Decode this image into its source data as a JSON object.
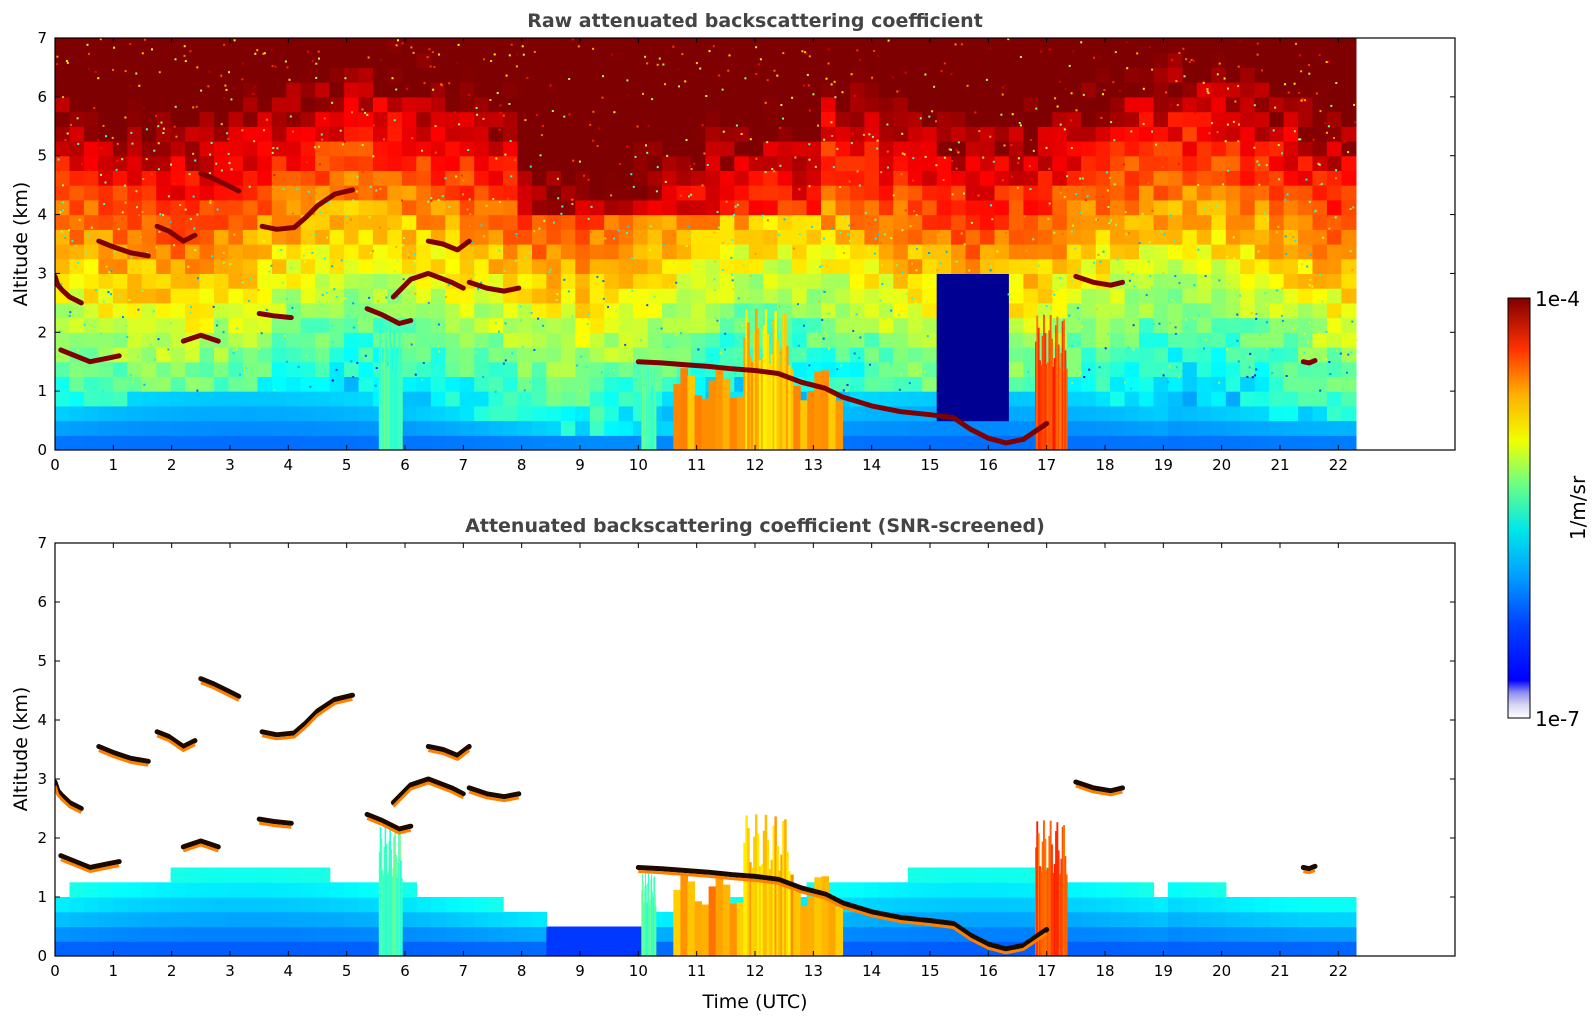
{
  "colors": {
    "jet": [
      "#00007f",
      "#0000ff",
      "#007fff",
      "#00ffff",
      "#7fff7f",
      "#ffff00",
      "#ff7f00",
      "#ff0000",
      "#7f0000"
    ],
    "cb_low_fade": "#e6e6f5",
    "layer_edge": "#1a0a00"
  },
  "colorbar": {
    "top_label": "1e-4",
    "bottom_label": "1e-7",
    "unit_label": "1/m/sr",
    "range": [
      1e-07,
      0.0001
    ],
    "scale": "log"
  },
  "chart_data": [
    {
      "type": "heatmap",
      "title": "Raw attenuated backscattering coefficient",
      "xlabel": "",
      "ylabel": "Altitude (km)",
      "xlim": [
        0,
        24
      ],
      "ylim": [
        0,
        7
      ],
      "x_ticks": [
        "0",
        "1",
        "2",
        "3",
        "4",
        "5",
        "6",
        "7",
        "8",
        "9",
        "10",
        "11",
        "12",
        "13",
        "14",
        "15",
        "16",
        "17",
        "18",
        "19",
        "20",
        "21",
        "22"
      ],
      "y_ticks": [
        "0",
        "1",
        "2",
        "3",
        "4",
        "5",
        "6",
        "7"
      ],
      "data_end_time": 22.3,
      "screened": false,
      "colorbar": "log 1e-7 to 1e-4 1/m/sr",
      "features": [
        {
          "kind": "cloud_layer",
          "t": [
            0.0,
            0.05,
            0.12,
            0.25,
            0.45
          ],
          "z": [
            2.95,
            2.8,
            2.72,
            2.6,
            2.5
          ]
        },
        {
          "kind": "cloud_layer",
          "t": [
            0.1,
            0.3,
            0.6,
            0.85,
            1.1
          ],
          "z": [
            1.7,
            1.62,
            1.5,
            1.55,
            1.6
          ]
        },
        {
          "kind": "cloud_layer",
          "t": [
            0.75,
            1.0,
            1.3,
            1.6
          ],
          "z": [
            3.55,
            3.45,
            3.35,
            3.3
          ]
        },
        {
          "kind": "cloud_layer",
          "t": [
            1.75,
            1.95,
            2.2,
            2.4
          ],
          "z": [
            3.8,
            3.72,
            3.55,
            3.65
          ]
        },
        {
          "kind": "cloud_layer",
          "t": [
            2.2,
            2.5,
            2.8
          ],
          "z": [
            1.85,
            1.95,
            1.85
          ]
        },
        {
          "kind": "cloud_layer",
          "t": [
            2.5,
            2.7,
            2.95,
            3.15
          ],
          "z": [
            4.7,
            4.62,
            4.5,
            4.4
          ]
        },
        {
          "kind": "cloud_layer",
          "t": [
            3.5,
            3.75,
            4.05
          ],
          "z": [
            2.32,
            2.28,
            2.25
          ]
        },
        {
          "kind": "cloud_layer",
          "t": [
            3.55,
            3.8,
            4.1,
            4.3,
            4.5,
            4.8,
            5.1
          ],
          "z": [
            3.8,
            3.75,
            3.78,
            3.95,
            4.15,
            4.35,
            4.42
          ]
        },
        {
          "kind": "cloud_layer",
          "t": [
            5.35,
            5.6,
            5.9,
            6.1
          ],
          "z": [
            2.4,
            2.3,
            2.15,
            2.2
          ]
        },
        {
          "kind": "cloud_layer",
          "t": [
            5.8,
            6.1,
            6.4,
            6.8,
            7.0
          ],
          "z": [
            2.6,
            2.9,
            3.0,
            2.85,
            2.75
          ]
        },
        {
          "kind": "cloud_layer",
          "t": [
            6.4,
            6.65,
            6.9,
            7.1
          ],
          "z": [
            3.55,
            3.5,
            3.4,
            3.55
          ]
        },
        {
          "kind": "cloud_layer",
          "t": [
            7.1,
            7.4,
            7.7,
            7.95
          ],
          "z": [
            2.85,
            2.75,
            2.7,
            2.75
          ]
        },
        {
          "kind": "cloud_layer",
          "t": [
            10.0,
            10.4,
            10.8,
            11.2,
            11.6,
            12.0,
            12.4,
            12.8,
            13.2,
            13.5,
            14.0,
            14.5,
            15.0,
            15.4,
            15.7,
            16.0,
            16.3,
            16.6,
            17.0
          ],
          "z": [
            1.5,
            1.48,
            1.45,
            1.42,
            1.38,
            1.35,
            1.3,
            1.15,
            1.05,
            0.9,
            0.75,
            0.65,
            0.6,
            0.55,
            0.35,
            0.2,
            0.12,
            0.18,
            0.45
          ]
        },
        {
          "kind": "cloud_layer",
          "t": [
            17.5,
            17.8,
            18.1,
            18.3
          ],
          "z": [
            2.95,
            2.85,
            2.8,
            2.85
          ]
        },
        {
          "kind": "cloud_layer",
          "t": [
            21.4,
            21.5,
            21.6
          ],
          "z": [
            1.5,
            1.48,
            1.52
          ]
        },
        {
          "kind": "precip_band",
          "t_start": 10.6,
          "t_end": 13.5,
          "z_top": 1.4,
          "color_level": 0.72
        },
        {
          "kind": "precip_band",
          "t_start": 11.8,
          "t_end": 12.6,
          "z_top": 2.4,
          "color_level": 0.68
        },
        {
          "kind": "precip_band",
          "t_start": 16.8,
          "t_end": 17.35,
          "z_top": 2.3,
          "color_level": 0.8
        },
        {
          "kind": "fall_streak",
          "t_start": 5.55,
          "t_end": 5.95,
          "z_top": 2.2,
          "color_level": 0.45
        },
        {
          "kind": "fall_streak",
          "t_start": 10.05,
          "t_end": 10.3,
          "z_top": 1.4,
          "color_level": 0.45
        }
      ]
    },
    {
      "type": "heatmap",
      "title": "Attenuated backscattering coefficient (SNR-screened)",
      "xlabel": "Time (UTC)",
      "ylabel": "Altitude (km)",
      "xlim": [
        0,
        24
      ],
      "ylim": [
        0,
        7
      ],
      "x_ticks": [
        "0",
        "1",
        "2",
        "3",
        "4",
        "5",
        "6",
        "7",
        "8",
        "9",
        "10",
        "11",
        "12",
        "13",
        "14",
        "15",
        "16",
        "17",
        "18",
        "19",
        "20",
        "21",
        "22"
      ],
      "y_ticks": [
        "0",
        "1",
        "2",
        "3",
        "4",
        "5",
        "6",
        "7"
      ],
      "data_end_time": 22.3,
      "screened": true,
      "features": "same cloud layers as the raw panel, background noise removed"
    }
  ]
}
